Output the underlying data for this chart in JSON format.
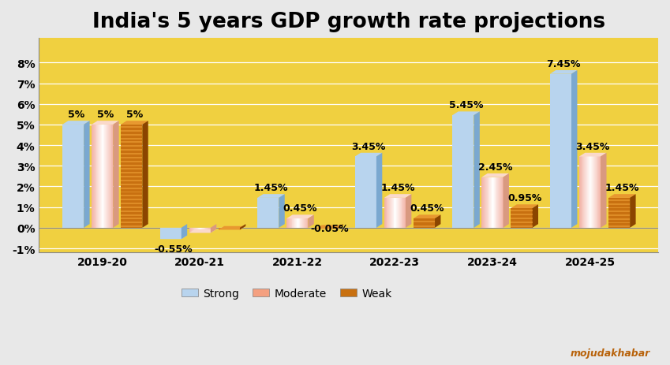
{
  "title": "India's 5 years GDP growth rate projections",
  "categories": [
    "2019-20",
    "2020-21",
    "2021-22",
    "2022-23",
    "2023-24",
    "2024-25"
  ],
  "strong": [
    5.0,
    -0.55,
    1.45,
    3.45,
    5.45,
    7.45
  ],
  "moderate": [
    5.0,
    -0.25,
    0.45,
    1.45,
    2.45,
    3.45
  ],
  "weak": [
    5.0,
    -0.1,
    -0.05,
    0.45,
    0.95,
    1.45
  ],
  "strong_labels": [
    "5%",
    "",
    "1.45%",
    "3.45%",
    "5.45%",
    "7.45%"
  ],
  "moderate_labels": [
    "5%",
    "",
    "0.45%",
    "1.45%",
    "2.45%",
    "3.45%"
  ],
  "weak_labels": [
    "5%",
    "",
    "-0.05%",
    "0.45%",
    "0.95%",
    "1.45%"
  ],
  "strong_neg_labels": [
    "",
    "-0.55%",
    "",
    "",
    "",
    ""
  ],
  "color_strong": "#b8d4ee",
  "color_strong_side": "#7aa8d0",
  "color_moderate_top": "#ffffff",
  "color_moderate_mid": "#f9c8b0",
  "color_moderate_bot": "#f08060",
  "color_weak_main": "#c87010",
  "color_weak_stripe": "#e89830",
  "color_weak_dark": "#8b4500",
  "color_weak_side": "#6b3500",
  "background_plot": "#f0d040",
  "background_fig": "#e8e8e8",
  "ylim": [
    -1.2,
    9.2
  ],
  "yticks": [
    -1,
    0,
    1,
    2,
    3,
    4,
    5,
    6,
    7,
    8
  ],
  "ytick_labels": [
    "-1%",
    "0%",
    "1%",
    "2%",
    "3%",
    "4%",
    "5%",
    "6%",
    "7%",
    "8%"
  ],
  "bar_width": 0.22,
  "title_fontsize": 19,
  "label_fontsize": 9,
  "watermark": "mojudakhabar"
}
